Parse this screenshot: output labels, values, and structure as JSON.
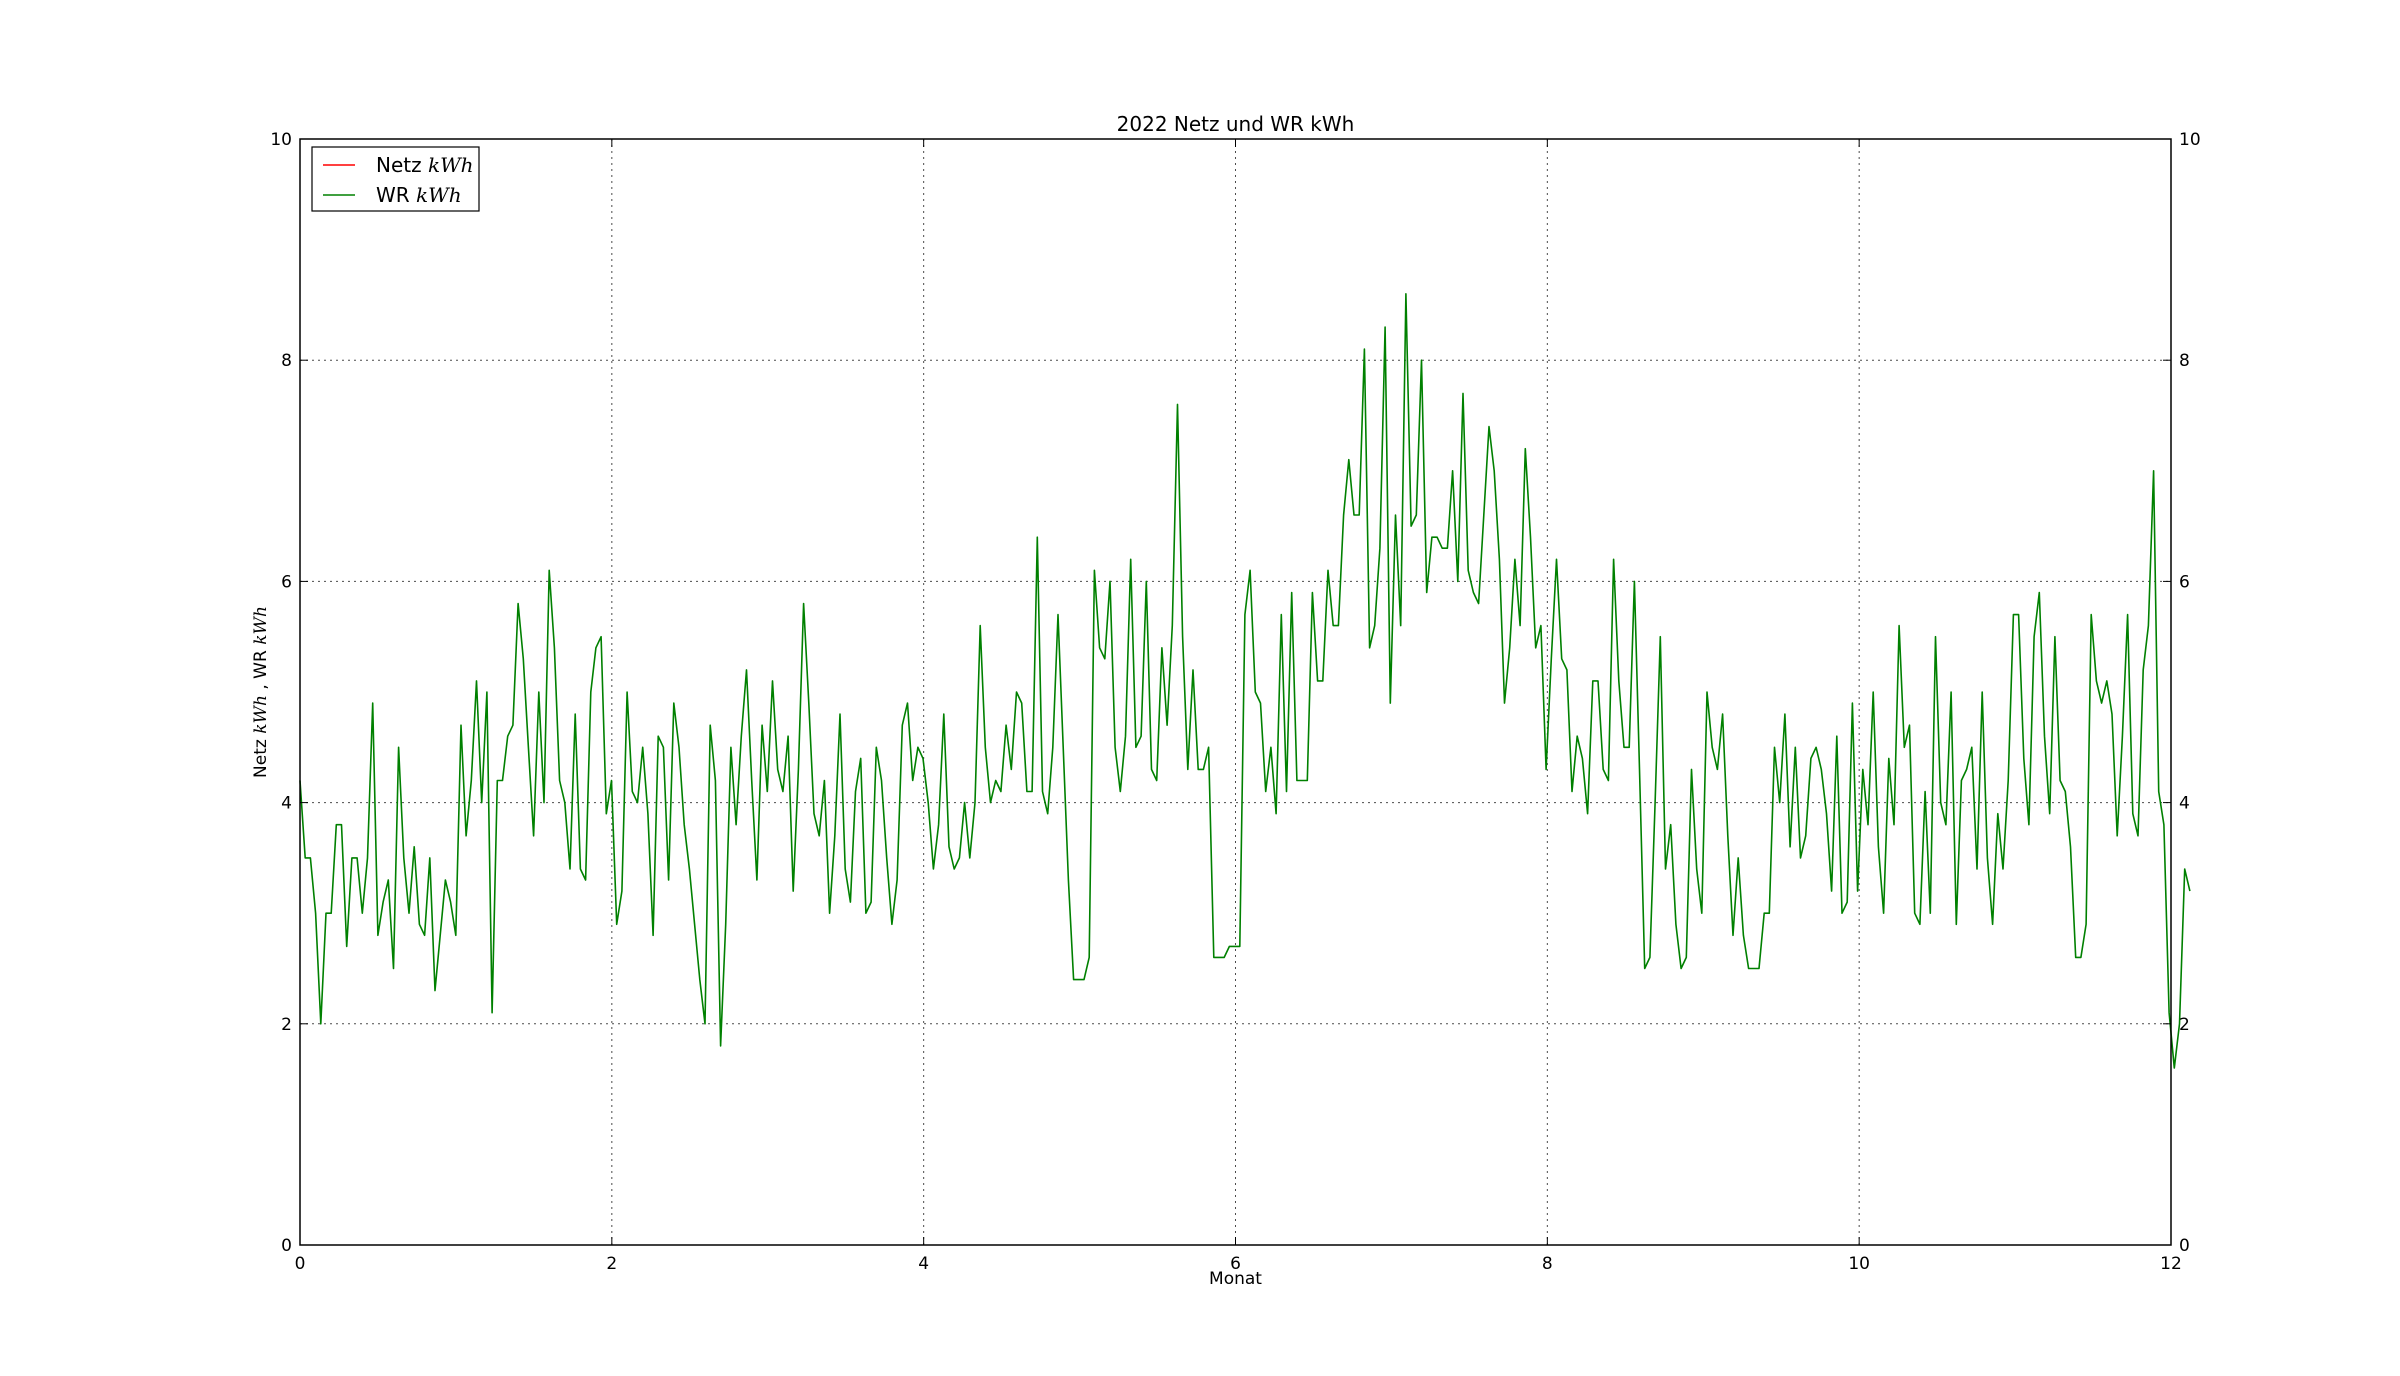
{
  "chart_data": {
    "type": "line",
    "title": "2022 Netz und WR kWh",
    "xlabel": "Monat",
    "ylabel_parts": [
      "Netz ",
      "kWh",
      " , WR ",
      "kWh"
    ],
    "xlim": [
      0,
      12
    ],
    "ylim": [
      0,
      10
    ],
    "x_ticks": [
      0,
      2,
      4,
      6,
      8,
      10,
      12
    ],
    "y_ticks": [
      0,
      2,
      4,
      6,
      8,
      10
    ],
    "grid": true,
    "legend_position": "top-left",
    "series": [
      {
        "name_prefix": "Netz ",
        "name_math": "kWh",
        "color": "#ff0000",
        "x": [],
        "y": []
      },
      {
        "name_prefix": "WR ",
        "name_math": "kWh",
        "color": "#008000",
        "x_start": 0,
        "x_step": 0.0333,
        "y": [
          4.2,
          3.5,
          3.5,
          3.0,
          2.0,
          3.0,
          3.0,
          3.8,
          3.8,
          2.7,
          3.5,
          3.5,
          3.0,
          3.5,
          4.9,
          2.8,
          3.1,
          3.3,
          2.5,
          4.5,
          3.5,
          3.0,
          3.6,
          2.9,
          2.8,
          3.5,
          2.3,
          2.8,
          3.3,
          3.1,
          2.8,
          4.7,
          3.7,
          4.2,
          5.1,
          4.0,
          5.0,
          2.1,
          4.2,
          4.2,
          4.6,
          4.7,
          5.8,
          5.3,
          4.5,
          3.7,
          5.0,
          4.0,
          6.1,
          5.4,
          4.2,
          4.0,
          3.4,
          4.8,
          3.4,
          3.3,
          5.0,
          5.4,
          5.5,
          3.9,
          4.2,
          2.9,
          3.2,
          5.0,
          4.1,
          4.0,
          4.5,
          3.9,
          2.8,
          4.6,
          4.5,
          3.3,
          4.9,
          4.5,
          3.8,
          3.4,
          2.9,
          2.4,
          2.0,
          4.7,
          4.2,
          1.8,
          2.9,
          4.5,
          3.8,
          4.6,
          5.2,
          4.2,
          3.3,
          4.7,
          4.1,
          5.1,
          4.3,
          4.1,
          4.6,
          3.2,
          4.3,
          5.8,
          4.9,
          3.9,
          3.7,
          4.2,
          3.0,
          3.7,
          4.8,
          3.4,
          3.1,
          4.1,
          4.4,
          3.0,
          3.1,
          4.5,
          4.2,
          3.5,
          2.9,
          3.3,
          4.7,
          4.9,
          4.2,
          4.5,
          4.4,
          4.0,
          3.4,
          3.8,
          4.8,
          3.6,
          3.4,
          3.5,
          4.0,
          3.5,
          4.0,
          5.6,
          4.5,
          4.0,
          4.2,
          4.1,
          4.7,
          4.3,
          5.0,
          4.9,
          4.1,
          4.1,
          6.4,
          4.1,
          3.9,
          4.5,
          5.7,
          4.5,
          3.3,
          2.4,
          2.4,
          2.4,
          2.6,
          6.1,
          5.4,
          5.3,
          6.0,
          4.5,
          4.1,
          4.6,
          6.2,
          4.5,
          4.6,
          6.0,
          4.3,
          4.2,
          5.4,
          4.7,
          5.6,
          7.6,
          5.5,
          4.3,
          5.2,
          4.3,
          4.3,
          4.5,
          2.6,
          2.6,
          2.6,
          2.7,
          2.7,
          2.7,
          5.7,
          6.1,
          5.0,
          4.9,
          4.1,
          4.5,
          3.9,
          5.7,
          4.1,
          5.9,
          4.2,
          4.2,
          4.2,
          5.9,
          5.1,
          5.1,
          6.1,
          5.6,
          5.6,
          6.6,
          7.1,
          6.6,
          6.6,
          8.1,
          5.4,
          5.6,
          6.3,
          8.3,
          4.9,
          6.6,
          5.6,
          8.6,
          6.5,
          6.6,
          8.0,
          5.9,
          6.4,
          6.4,
          6.3,
          6.3,
          7.0,
          6.0,
          7.7,
          6.1,
          5.9,
          5.8,
          6.6,
          7.4,
          7.0,
          6.2,
          4.9,
          5.4,
          6.2,
          5.6,
          7.2,
          6.4,
          5.4,
          5.6,
          4.3,
          5.3,
          6.2,
          5.3,
          5.2,
          4.1,
          4.6,
          4.4,
          3.9,
          5.1,
          5.1,
          4.3,
          4.2,
          6.2,
          5.1,
          4.5,
          4.5,
          6.0,
          4.3,
          2.5,
          2.6,
          4.0,
          5.5,
          3.4,
          3.8,
          2.9,
          2.5,
          2.6,
          4.3,
          3.4,
          3.0,
          5.0,
          4.5,
          4.3,
          4.8,
          3.7,
          2.8,
          3.5,
          2.8,
          2.5,
          2.5,
          2.5,
          3.0,
          3.0,
          4.5,
          4.0,
          4.8,
          3.6,
          4.5,
          3.5,
          3.7,
          4.4,
          4.5,
          4.3,
          3.9,
          3.2,
          4.6,
          3.0,
          3.1,
          4.9,
          3.2,
          4.3,
          3.8,
          5.0,
          3.6,
          3.0,
          4.4,
          3.8,
          5.6,
          4.5,
          4.7,
          3.0,
          2.9,
          4.1,
          3.0,
          5.5,
          4.0,
          3.8,
          5.0,
          2.9,
          4.2,
          4.3,
          4.5,
          3.4,
          5.0,
          3.5,
          2.9,
          3.9,
          3.4,
          4.2,
          5.7,
          5.7,
          4.4,
          3.8,
          5.5,
          5.9,
          4.6,
          3.9,
          5.5,
          4.2,
          4.1,
          3.6,
          2.6,
          2.6,
          2.9,
          5.7,
          5.1,
          4.9,
          5.1,
          4.8,
          3.7,
          4.6,
          5.7,
          3.9,
          3.7,
          5.2,
          5.6,
          7.0,
          4.1,
          3.8,
          2.1,
          1.6,
          2.0,
          3.4,
          3.2
        ]
      }
    ]
  }
}
